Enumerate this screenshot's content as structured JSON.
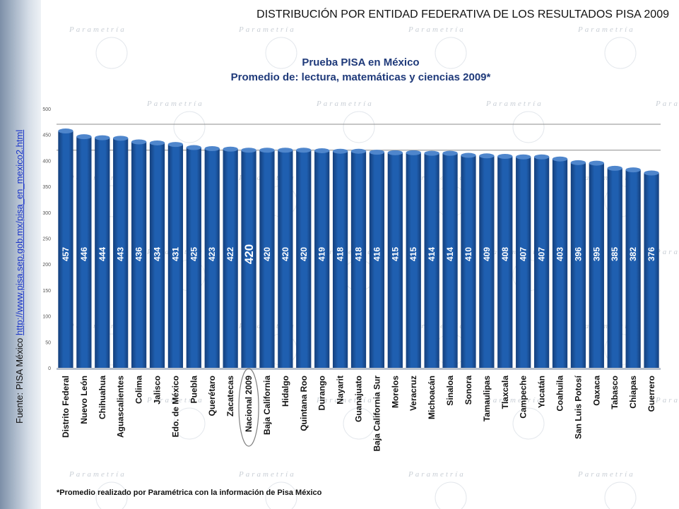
{
  "header": {
    "title": "DISTRIBUCIÓN POR ENTIDAD FEDERATIVA DE LOS RESULTADOS PISA 2009"
  },
  "source": {
    "prefix": "Fuente: PISA México ",
    "link": "http://www.pisa.sep.gob.mx/pisa_en_mexico2.html"
  },
  "footnote": "*Promedio realizado por Paramétrica con la información de Pisa México",
  "watermark": "Parametría",
  "colors": {
    "bar": "#1f5fb0",
    "bar_dark": "#143f7c",
    "title": "#1f3a7a",
    "highlight": "#7f7f7f"
  },
  "chart_data": {
    "type": "bar",
    "title": "Prueba PISA en México",
    "subtitle": "Promedio de: lectura, matemáticas y ciencias 2009*",
    "xlabel": "",
    "ylabel": "",
    "ylim": [
      0,
      500
    ],
    "yticks": [
      0,
      50,
      100,
      150,
      200,
      250,
      300,
      350,
      400,
      450,
      500
    ],
    "grid": false,
    "reference_lines": [
      470,
      420
    ],
    "highlight_category": "Nacional 2009",
    "categories": [
      "Distrito Federal",
      "Nuevo León",
      "Chihuahua",
      "Aguascalientes",
      "Colima",
      "Jalisco",
      "Edo. de México",
      "Puebla",
      "Querétaro",
      "Zacatecas",
      "Nacional 2009",
      "Baja California",
      "Hidalgo",
      "Quintana Roo",
      "Durango",
      "Nayarit",
      "Guanajuato",
      "Baja California Sur",
      "Morelos",
      "Veracruz",
      "Michoacán",
      "Sinaloa",
      "Sonora",
      "Tamaulipas",
      "Tlaxcala",
      "Campeche",
      "Yucatán",
      "Coahuila",
      "San Luis Potosí",
      "Oaxaca",
      "Tabasco",
      "Chiapas",
      "Guerrero"
    ],
    "values": [
      457,
      446,
      444,
      443,
      436,
      434,
      431,
      425,
      423,
      422,
      420,
      420,
      420,
      420,
      419,
      418,
      418,
      416,
      415,
      415,
      414,
      414,
      410,
      409,
      408,
      407,
      407,
      403,
      396,
      395,
      385,
      382,
      376
    ]
  }
}
